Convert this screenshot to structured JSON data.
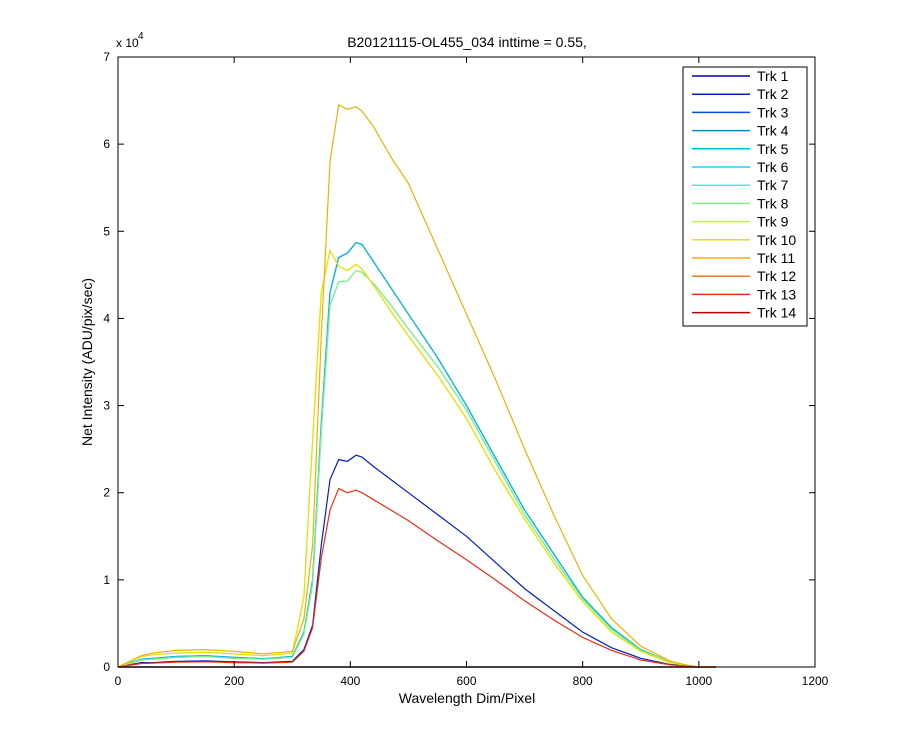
{
  "chart_data": {
    "type": "line",
    "title": "B20121115-OL455_034 inttime = 0.55,",
    "xlabel": "Wavelength Dim/Pixel",
    "ylabel": "Net Intensity (ADU/pix/sec)",
    "xlim": [
      0,
      1200
    ],
    "ylim": [
      0,
      70000
    ],
    "x_ticks": [
      "0",
      "200",
      "400",
      "600",
      "800",
      "1000",
      "1200"
    ],
    "x_tick_values": [
      0,
      200,
      400,
      600,
      800,
      1000,
      1200
    ],
    "y_ticks": [
      "0",
      "1",
      "2",
      "3",
      "4",
      "5",
      "6",
      "7"
    ],
    "y_tick_values": [
      0,
      10000,
      20000,
      30000,
      40000,
      50000,
      60000,
      70000
    ],
    "y_multiplier_base": "x 10",
    "y_multiplier_exp": "4",
    "grid": false,
    "legend_position": "top-right",
    "x": [
      0,
      40,
      60,
      100,
      150,
      200,
      250,
      300,
      320,
      335,
      350,
      365,
      380,
      395,
      410,
      420,
      440,
      470,
      500,
      550,
      600,
      650,
      700,
      750,
      800,
      850,
      900,
      950,
      980,
      1000,
      1030
    ],
    "series": [
      {
        "name": "Trk 1",
        "color": "#0000a8",
        "values": [
          0,
          0,
          0,
          0,
          0,
          0,
          0,
          0,
          0,
          0,
          0,
          0,
          0,
          0,
          0,
          0,
          0,
          0,
          0,
          0,
          0,
          0,
          0,
          0,
          0,
          0,
          0,
          0,
          0,
          0,
          0
        ]
      },
      {
        "name": "Trk 2",
        "color": "#0020c8",
        "values": [
          0,
          500,
          500,
          650,
          700,
          600,
          500,
          650,
          2000,
          4800,
          14000,
          21500,
          23800,
          23600,
          24300,
          24100,
          23000,
          21500,
          20000,
          17500,
          15000,
          12000,
          9000,
          6500,
          4000,
          2200,
          1000,
          300,
          100,
          0,
          0
        ]
      },
      {
        "name": "Trk 3",
        "color": "#0050e0",
        "values": [
          0,
          0,
          0,
          0,
          0,
          0,
          0,
          0,
          0,
          0,
          0,
          0,
          0,
          0,
          0,
          0,
          0,
          0,
          0,
          0,
          0,
          0,
          0,
          0,
          0,
          0,
          0,
          0,
          0,
          0,
          0
        ]
      },
      {
        "name": "Trk 4",
        "color": "#0090d0",
        "values": [
          0,
          900,
          1000,
          1200,
          1300,
          1100,
          950,
          1200,
          4000,
          10000,
          28000,
          43000,
          47000,
          47500,
          48700,
          48500,
          46500,
          43500,
          40500,
          35500,
          30000,
          24000,
          18000,
          13000,
          8000,
          4500,
          2000,
          600,
          200,
          0,
          0
        ]
      },
      {
        "name": "Trk 5",
        "color": "#00b8e0",
        "values": [
          0,
          900,
          1000,
          1200,
          1300,
          1100,
          950,
          1200,
          4000,
          10000,
          28000,
          43000,
          47000,
          47500,
          48700,
          48500,
          46500,
          43500,
          40500,
          35500,
          30000,
          24000,
          18000,
          13000,
          8000,
          4500,
          2000,
          600,
          200,
          0,
          0
        ]
      },
      {
        "name": "Trk 6",
        "color": "#10d8e8",
        "values": [
          0,
          0,
          0,
          0,
          0,
          0,
          0,
          0,
          0,
          0,
          0,
          0,
          0,
          0,
          0,
          0,
          0,
          0,
          0,
          0,
          0,
          0,
          0,
          0,
          0,
          0,
          0,
          0,
          0,
          0,
          0
        ]
      },
      {
        "name": "Trk 7",
        "color": "#40f0d8",
        "values": [
          0,
          800,
          900,
          1100,
          1200,
          1000,
          900,
          1100,
          3800,
          9500,
          27000,
          41500,
          44200,
          44300,
          45500,
          45300,
          44000,
          41500,
          38800,
          34500,
          29500,
          23500,
          17500,
          12500,
          7800,
          4300,
          1900,
          600,
          200,
          0,
          0
        ]
      },
      {
        "name": "Trk 8",
        "color": "#80f080",
        "values": [
          0,
          800,
          900,
          1100,
          1200,
          1000,
          900,
          1100,
          3800,
          9500,
          27000,
          41500,
          44200,
          44300,
          45500,
          45300,
          44000,
          41500,
          38800,
          34500,
          29500,
          23500,
          17500,
          12500,
          7800,
          4300,
          1900,
          600,
          200,
          0,
          0
        ]
      },
      {
        "name": "Trk 9",
        "color": "#c0f050",
        "values": [
          0,
          1200,
          1400,
          1600,
          1700,
          1500,
          1300,
          1600,
          8000,
          26000,
          43000,
          47800,
          46000,
          45500,
          46200,
          45700,
          43800,
          40800,
          38000,
          33500,
          28500,
          22500,
          17000,
          12000,
          7500,
          4000,
          1800,
          500,
          150,
          0,
          0
        ]
      },
      {
        "name": "Trk 10",
        "color": "#e8e000",
        "values": [
          0,
          1200,
          1400,
          1600,
          1700,
          1500,
          1300,
          1600,
          8000,
          26000,
          43000,
          47800,
          46000,
          45500,
          46200,
          45700,
          43800,
          40800,
          38000,
          33500,
          28500,
          22500,
          17000,
          12000,
          7500,
          4000,
          1800,
          500,
          150,
          0,
          0
        ]
      },
      {
        "name": "Trk 11",
        "color": "#f0b000",
        "values": [
          0,
          1300,
          1600,
          1900,
          2000,
          1800,
          1500,
          1800,
          5500,
          14000,
          38000,
          58000,
          64500,
          64000,
          64300,
          63800,
          62000,
          58500,
          55500,
          48000,
          40500,
          33000,
          25000,
          17500,
          10500,
          5500,
          2400,
          700,
          200,
          0,
          0
        ]
      },
      {
        "name": "Trk 12",
        "color": "#f07820",
        "values": [
          0,
          0,
          0,
          0,
          0,
          0,
          0,
          0,
          0,
          0,
          0,
          0,
          0,
          0,
          0,
          0,
          0,
          0,
          0,
          0,
          0,
          0,
          0,
          0,
          0,
          0,
          0,
          0,
          0,
          0,
          0
        ]
      },
      {
        "name": "Trk 13",
        "color": "#e83010",
        "values": [
          0,
          400,
          450,
          550,
          600,
          500,
          450,
          550,
          1800,
          4500,
          12500,
          18000,
          20500,
          20000,
          20300,
          20000,
          19200,
          18000,
          16800,
          14500,
          12300,
          10000,
          7600,
          5400,
          3400,
          1900,
          800,
          250,
          80,
          0,
          0
        ]
      },
      {
        "name": "Trk 14",
        "color": "#b80000",
        "values": [
          0,
          0,
          0,
          0,
          0,
          0,
          0,
          0,
          0,
          0,
          0,
          0,
          0,
          0,
          0,
          0,
          0,
          0,
          0,
          0,
          0,
          0,
          0,
          0,
          0,
          0,
          0,
          0,
          0,
          0,
          0
        ]
      }
    ]
  }
}
